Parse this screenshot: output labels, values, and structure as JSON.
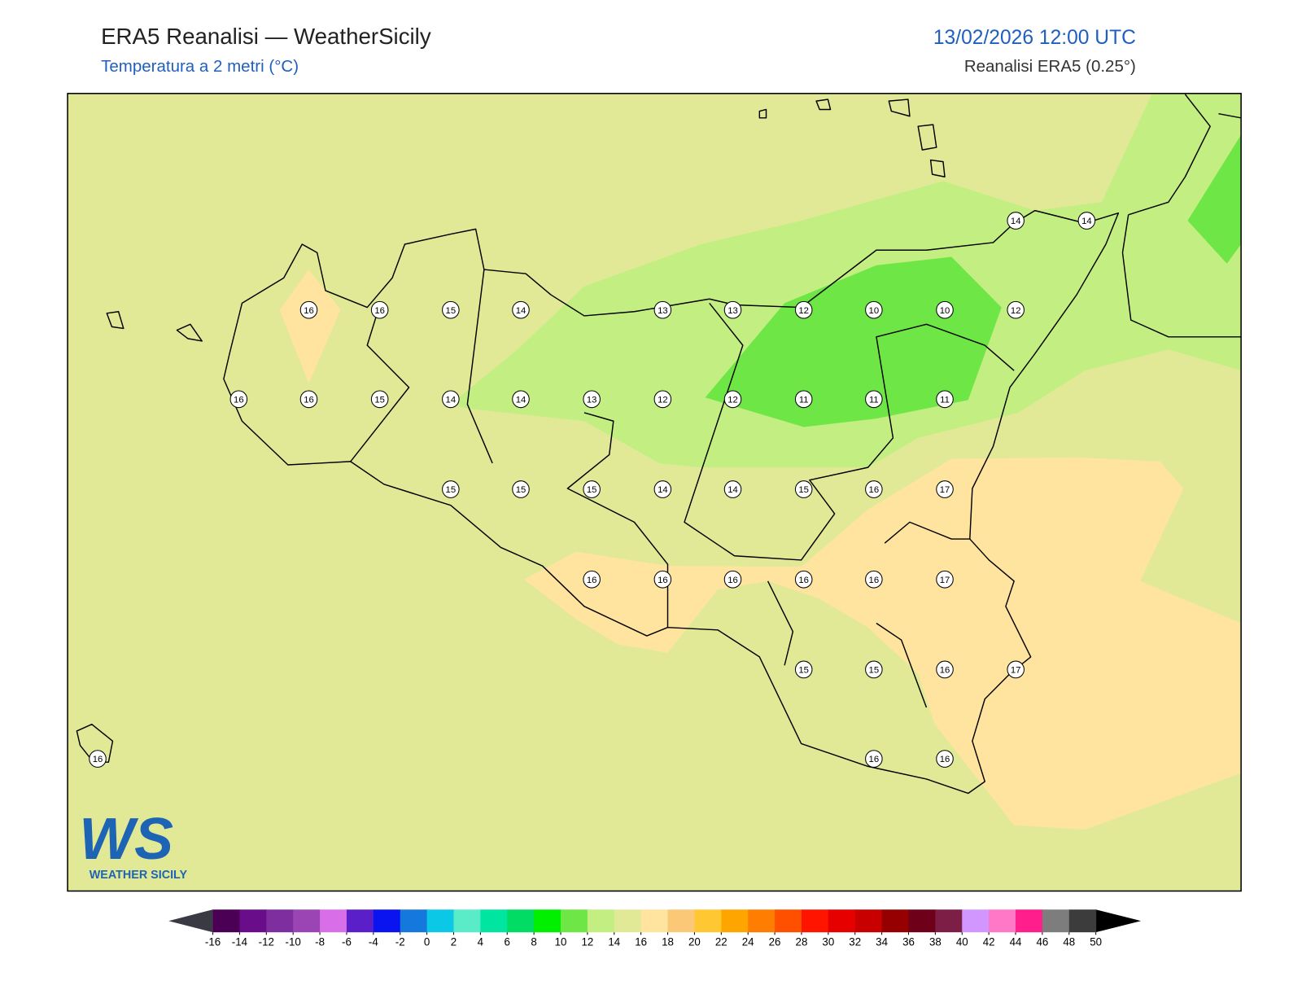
{
  "header": {
    "title": "ERA5 Reanalisi — WeatherSicily",
    "subtitle": "Temperatura a 2 metri (°C)",
    "datetime": "13/02/2026 12:00 UTC",
    "source": "Reanalisi ERA5 (0.25°)"
  },
  "stations": [
    14,
    14,
    16,
    16,
    15,
    14,
    13,
    13,
    12,
    10,
    10,
    12,
    16,
    16,
    15,
    14,
    14,
    13,
    12,
    12,
    11,
    11,
    11,
    15,
    15,
    15,
    14,
    14,
    15,
    16,
    17,
    16,
    16,
    16,
    16,
    16,
    17,
    15,
    15,
    16,
    17,
    16,
    16,
    16
  ],
  "logo": {
    "mark": "WS",
    "name": "WEATHER SICILY"
  },
  "colorbar": {
    "ticks": [
      -16,
      -14,
      -12,
      -10,
      -8,
      -6,
      -4,
      -2,
      0,
      2,
      4,
      6,
      8,
      10,
      12,
      14,
      16,
      18,
      20,
      22,
      24,
      26,
      28,
      30,
      32,
      34,
      36,
      38,
      40,
      42,
      44,
      46,
      48,
      50
    ],
    "colors": [
      "#4b0055",
      "#6a0d8a",
      "#7e2e9e",
      "#9b45b5",
      "#d86ee8",
      "#5a1fc8",
      "#0a14f0",
      "#1478dc",
      "#0ac8e6",
      "#5aebc8",
      "#00e6a0",
      "#00dc64",
      "#00f000",
      "#6ee646",
      "#c3ee82",
      "#e1e997",
      "#ffe4a0",
      "#fbc878",
      "#ffc832",
      "#ffa500",
      "#ff7d00",
      "#ff5000",
      "#ff1400",
      "#e60000",
      "#c80000",
      "#960000",
      "#6e0019",
      "#7d1e46",
      "#d296ff",
      "#ff78c8",
      "#ff1e8c",
      "#7d7d7d",
      "#3c3c3c"
    ],
    "under": "#3a3a45",
    "over": "#000000"
  }
}
